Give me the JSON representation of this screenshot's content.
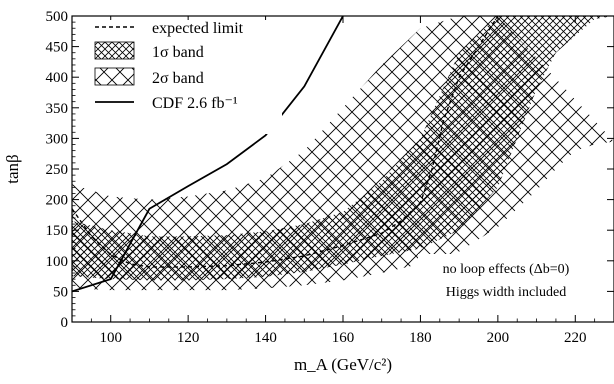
{
  "chart_data": {
    "type": "area",
    "xlabel": "m_A (GeV/c²)",
    "ylabel": "tanβ",
    "xlim": [
      90,
      230
    ],
    "ylim": [
      0,
      500
    ],
    "xticks": [
      100,
      120,
      140,
      160,
      180,
      200,
      220
    ],
    "yticks": [
      0,
      50,
      100,
      150,
      200,
      250,
      300,
      350,
      400,
      450,
      500
    ],
    "grid": false,
    "legend_position": "top-left",
    "legend": [
      {
        "key": "expected",
        "label": "expected limit",
        "style": "dashed"
      },
      {
        "key": "band1",
        "label": "1σ band",
        "style": "dense-crosshatch"
      },
      {
        "key": "band2",
        "label": "2σ band",
        "style": "sparse-crosshatch"
      },
      {
        "key": "cdf",
        "label": "CDF 2.6 fb⁻¹",
        "style": "solid"
      }
    ],
    "annotations": [
      "no loop effects (Δb=0)",
      "Higgs width included"
    ],
    "series": [
      {
        "name": "expected limit",
        "x": [
          90,
          95,
          100,
          105,
          110,
          120,
          130,
          140,
          150,
          160,
          170,
          175,
          180,
          183,
          186,
          190,
          195,
          200
        ],
        "y": [
          185,
          140,
          110,
          95,
          90,
          90,
          92,
          98,
          108,
          125,
          145,
          165,
          195,
          250,
          330,
          400,
          450,
          500
        ]
      },
      {
        "name": "CDF 2.6 fb⁻¹",
        "x": [
          90,
          100,
          110,
          120,
          130,
          140,
          150,
          160
        ],
        "y": [
          50,
          70,
          185,
          222,
          258,
          305,
          385,
          500
        ]
      },
      {
        "name": "1σ band upper",
        "x": [
          90,
          100,
          110,
          120,
          130,
          140,
          150,
          160,
          170,
          180,
          185,
          190,
          200
        ],
        "y": [
          165,
          150,
          140,
          140,
          142,
          148,
          160,
          180,
          230,
          300,
          370,
          440,
          500
        ]
      },
      {
        "name": "1σ band lower",
        "x": [
          90,
          100,
          110,
          120,
          130,
          140,
          150,
          160,
          170,
          180,
          190,
          200,
          205,
          210,
          215,
          225,
          230
        ],
        "y": [
          75,
          70,
          68,
          68,
          70,
          74,
          82,
          94,
          108,
          120,
          150,
          220,
          300,
          380,
          440,
          495,
          500
        ]
      },
      {
        "name": "2σ band upper",
        "x": [
          90,
          100,
          110,
          120,
          130,
          140,
          150,
          160,
          170,
          180,
          190,
          200
        ],
        "y": [
          225,
          205,
          200,
          205,
          215,
          235,
          280,
          350,
          420,
          480,
          500,
          500
        ]
      },
      {
        "name": "2σ band lower",
        "x": [
          90,
          100,
          110,
          120,
          130,
          140,
          150,
          160,
          170,
          180,
          190,
          200,
          210,
          215,
          220,
          225,
          230
        ],
        "y": [
          55,
          52,
          52,
          52,
          52,
          55,
          60,
          68,
          80,
          95,
          115,
          155,
          215,
          250,
          280,
          290,
          295
        ]
      }
    ]
  }
}
